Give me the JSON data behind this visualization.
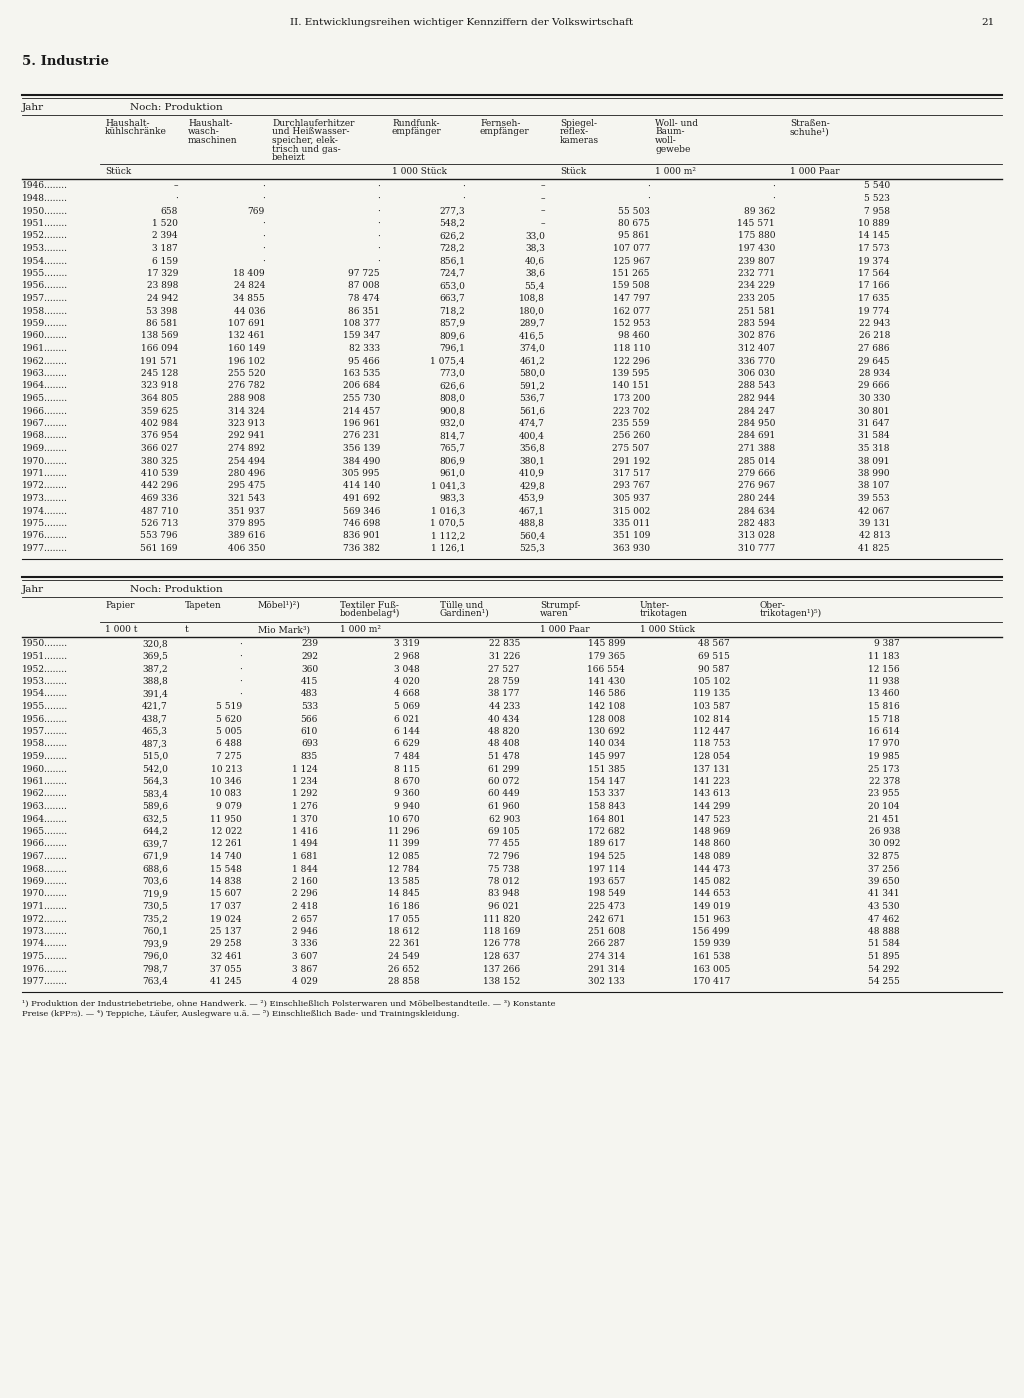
{
  "page_header": "II. Entwicklungsreihen wichtiger Kennziffern der Volkswirtschaft",
  "page_number": "21",
  "section_title": "5. Industrie",
  "table1": {
    "title": "Noch: Produktion",
    "col_headers": [
      "Jahr",
      "Haushalt-\nkühlschränke",
      "Haushalt-\nwasch-\nmaschinen",
      "Durchlauferhitzer\nund Heißwasser-\nspeicher, elek-\ntrisch und gas-\nbeheizt",
      "Rundfunk-\nempfänger",
      "Fernseh-\nempfänger",
      "Spiegel-\nreflex-\nkameras",
      "Woll- und\nBaum-\nwoll-\ngewebe",
      "Straßen-\nschuhe¹)"
    ],
    "units": [
      "",
      "Stück",
      "",
      "",
      "1 000 Stück",
      "",
      "Stück",
      "1 000 m²",
      "1 000 Paar"
    ],
    "rows": [
      [
        "1946",
        "–",
        "·",
        "·",
        "·",
        "–",
        "·",
        "·",
        "5 540"
      ],
      [
        "1948",
        "·",
        "·",
        "·",
        "·",
        "–",
        "·",
        "·",
        "5 523"
      ],
      [
        "1950",
        "658",
        "769",
        "·",
        "277,3",
        "–",
        "55 503",
        "89 362",
        "7 958"
      ],
      [
        "1951",
        "1 520",
        "·",
        "·",
        "548,2",
        "–",
        "80 675",
        "145 571",
        "10 889"
      ],
      [
        "1952",
        "2 394",
        "·",
        "·",
        "626,2",
        "33,0",
        "95 861",
        "175 880",
        "14 145"
      ],
      [
        "1953",
        "3 187",
        "·",
        "·",
        "728,2",
        "38,3",
        "107 077",
        "197 430",
        "17 573"
      ],
      [
        "1954",
        "6 159",
        "·",
        "·",
        "856,1",
        "40,6",
        "125 967",
        "239 807",
        "19 374"
      ],
      [
        "1955",
        "17 329",
        "18 409",
        "97 725",
        "724,7",
        "38,6",
        "151 265",
        "232 771",
        "17 564"
      ],
      [
        "1956",
        "23 898",
        "24 824",
        "87 008",
        "653,0",
        "55,4",
        "159 508",
        "234 229",
        "17 166"
      ],
      [
        "1957",
        "24 942",
        "34 855",
        "78 474",
        "663,7",
        "108,8",
        "147 797",
        "233 205",
        "17 635"
      ],
      [
        "1958",
        "53 398",
        "44 036",
        "86 351",
        "718,2",
        "180,0",
        "162 077",
        "251 581",
        "19 774"
      ],
      [
        "1959",
        "86 581",
        "107 691",
        "108 377",
        "857,9",
        "289,7",
        "152 953",
        "283 594",
        "22 943"
      ],
      [
        "1960",
        "138 569",
        "132 461",
        "159 347",
        "809,6",
        "416,5",
        "98 460",
        "302 876",
        "26 218"
      ],
      [
        "1961",
        "166 094",
        "160 149",
        "82 333",
        "796,1",
        "374,0",
        "118 110",
        "312 407",
        "27 686"
      ],
      [
        "1962",
        "191 571",
        "196 102",
        "95 466",
        "1 075,4",
        "461,2",
        "122 296",
        "336 770",
        "29 645"
      ],
      [
        "1963",
        "245 128",
        "255 520",
        "163 535",
        "773,0",
        "580,0",
        "139 595",
        "306 030",
        "28 934"
      ],
      [
        "1964",
        "323 918",
        "276 782",
        "206 684",
        "626,6",
        "591,2",
        "140 151",
        "288 543",
        "29 666"
      ],
      [
        "1965",
        "364 805",
        "288 908",
        "255 730",
        "808,0",
        "536,7",
        "173 200",
        "282 944",
        "30 330"
      ],
      [
        "1966",
        "359 625",
        "314 324",
        "214 457",
        "900,8",
        "561,6",
        "223 702",
        "284 247",
        "30 801"
      ],
      [
        "1967",
        "402 984",
        "323 913",
        "196 961",
        "932,0",
        "474,7",
        "235 559",
        "284 950",
        "31 647"
      ],
      [
        "1968",
        "376 954",
        "292 941",
        "276 231",
        "814,7",
        "400,4",
        "256 260",
        "284 691",
        "31 584"
      ],
      [
        "1969",
        "366 027",
        "274 892",
        "356 139",
        "765,7",
        "356,8",
        "275 507",
        "271 388",
        "35 318"
      ],
      [
        "1970",
        "380 325",
        "254 494",
        "384 490",
        "806,9",
        "380,1",
        "291 192",
        "285 014",
        "38 091"
      ],
      [
        "1971",
        "410 539",
        "280 496",
        "305 995",
        "961,0",
        "410,9",
        "317 517",
        "279 666",
        "38 990"
      ],
      [
        "1972",
        "442 296",
        "295 475",
        "414 140",
        "1 041,3",
        "429,8",
        "293 767",
        "276 967",
        "38 107"
      ],
      [
        "1973",
        "469 336",
        "321 543",
        "491 692",
        "983,3",
        "453,9",
        "305 937",
        "280 244",
        "39 553"
      ],
      [
        "1974",
        "487 710",
        "351 937",
        "569 346",
        "1 016,3",
        "467,1",
        "315 002",
        "284 634",
        "42 067"
      ],
      [
        "1975",
        "526 713",
        "379 895",
        "746 698",
        "1 070,5",
        "488,8",
        "335 011",
        "282 483",
        "39 131"
      ],
      [
        "1976",
        "553 796",
        "389 616",
        "836 901",
        "1 112,2",
        "560,4",
        "351 109",
        "313 028",
        "42 813"
      ],
      [
        "1977",
        "561 169",
        "406 350",
        "736 382",
        "1 126,1",
        "525,3",
        "363 930",
        "310 777",
        "41 825"
      ]
    ]
  },
  "table2": {
    "title": "Noch: Produktion",
    "col_headers": [
      "Jahr",
      "Papier",
      "Tapeten",
      "Möbel¹)²)",
      "Textiler Fuß-\nbodenbelag⁴)",
      "Tülle und\nGardinen¹)",
      "Strumpf-\nwaren",
      "Unter-\ntrikotagen",
      "Ober-\ntrikotagen¹)⁵)"
    ],
    "units": [
      "",
      "1 000 t",
      "t",
      "Mio Mark³)",
      "1 000 m²",
      "",
      "1 000 Paar",
      "1 000 Stück",
      ""
    ],
    "rows": [
      [
        "1950",
        "320,8",
        "·",
        "239",
        "3 319",
        "22 835",
        "145 899",
        "48 567",
        "9 387"
      ],
      [
        "1951",
        "369,5",
        "·",
        "292",
        "2 968",
        "31 226",
        "179 365",
        "69 515",
        "11 183"
      ],
      [
        "1952",
        "387,2",
        "·",
        "360",
        "3 048",
        "27 527",
        "166 554",
        "90 587",
        "12 156"
      ],
      [
        "1953",
        "388,8",
        "·",
        "415",
        "4 020",
        "28 759",
        "141 430",
        "105 102",
        "11 938"
      ],
      [
        "1954",
        "391,4",
        "·",
        "483",
        "4 668",
        "38 177",
        "146 586",
        "119 135",
        "13 460"
      ],
      [
        "1955",
        "421,7",
        "5 519",
        "533",
        "5 069",
        "44 233",
        "142 108",
        "103 587",
        "15 816"
      ],
      [
        "1956",
        "438,7",
        "5 620",
        "566",
        "6 021",
        "40 434",
        "128 008",
        "102 814",
        "15 718"
      ],
      [
        "1957",
        "465,3",
        "5 005",
        "610",
        "6 144",
        "48 820",
        "130 692",
        "112 447",
        "16 614"
      ],
      [
        "1958",
        "487,3",
        "6 488",
        "693",
        "6 629",
        "48 408",
        "140 034",
        "118 753",
        "17 970"
      ],
      [
        "1959",
        "515,0",
        "7 275",
        "835",
        "7 484",
        "51 478",
        "145 997",
        "128 054",
        "19 985"
      ],
      [
        "1960",
        "542,0",
        "10 213",
        "1 124",
        "8 115",
        "61 299",
        "151 385",
        "137 131",
        "25 173"
      ],
      [
        "1961",
        "564,3",
        "10 346",
        "1 234",
        "8 670",
        "60 072",
        "154 147",
        "141 223",
        "22 378"
      ],
      [
        "1962",
        "583,4",
        "10 083",
        "1 292",
        "9 360",
        "60 449",
        "153 337",
        "143 613",
        "23 955"
      ],
      [
        "1963",
        "589,6",
        "9 079",
        "1 276",
        "9 940",
        "61 960",
        "158 843",
        "144 299",
        "20 104"
      ],
      [
        "1964",
        "632,5",
        "11 950",
        "1 370",
        "10 670",
        "62 903",
        "164 801",
        "147 523",
        "21 451"
      ],
      [
        "1965",
        "644,2",
        "12 022",
        "1 416",
        "11 296",
        "69 105",
        "172 682",
        "148 969",
        "26 938"
      ],
      [
        "1966",
        "639,7",
        "12 261",
        "1 494",
        "11 399",
        "77 455",
        "189 617",
        "148 860",
        "30 092"
      ],
      [
        "1967",
        "671,9",
        "14 740",
        "1 681",
        "12 085",
        "72 796",
        "194 525",
        "148 089",
        "32 875"
      ],
      [
        "1968",
        "688,6",
        "15 548",
        "1 844",
        "12 784",
        "75 738",
        "197 114",
        "144 473",
        "37 256"
      ],
      [
        "1969",
        "703,6",
        "14 838",
        "2 160",
        "13 585",
        "78 012",
        "193 657",
        "145 082",
        "39 650"
      ],
      [
        "1970",
        "719,9",
        "15 607",
        "2 296",
        "14 845",
        "83 948",
        "198 549",
        "144 653",
        "41 341"
      ],
      [
        "1971",
        "730,5",
        "17 037",
        "2 418",
        "16 186",
        "96 021",
        "225 473",
        "149 019",
        "43 530"
      ],
      [
        "1972",
        "735,2",
        "19 024",
        "2 657",
        "17 055",
        "111 820",
        "242 671",
        "151 963",
        "47 462"
      ],
      [
        "1973",
        "760,1",
        "25 137",
        "2 946",
        "18 612",
        "118 169",
        "251 608",
        "156 499",
        "48 888"
      ],
      [
        "1974",
        "793,9",
        "29 258",
        "3 336",
        "22 361",
        "126 778",
        "266 287",
        "159 939",
        "51 584"
      ],
      [
        "1975",
        "796,0",
        "32 461",
        "3 607",
        "24 549",
        "128 637",
        "274 314",
        "161 538",
        "51 895"
      ],
      [
        "1976",
        "798,7",
        "37 055",
        "3 867",
        "26 652",
        "137 266",
        "291 314",
        "163 005",
        "54 292"
      ],
      [
        "1977",
        "763,4",
        "41 245",
        "4 029",
        "28 858",
        "138 152",
        "302 133",
        "170 417",
        "54 255"
      ]
    ]
  },
  "footnotes": [
    "¹) Produktion der Industriebetriebe, ohne Handwerk. — ²) Einschließlich Polsterwaren und Möbelbestandteile. — ³) Konstante",
    "Preise (kPP₇₅). — ⁴) Teppiche, Läufer, Auslegware u.ä. — ⁵) Einschließlich Bade- und Trainingskleidung."
  ],
  "bg_color": "#f5f5f0",
  "text_color": "#1a1a1a"
}
